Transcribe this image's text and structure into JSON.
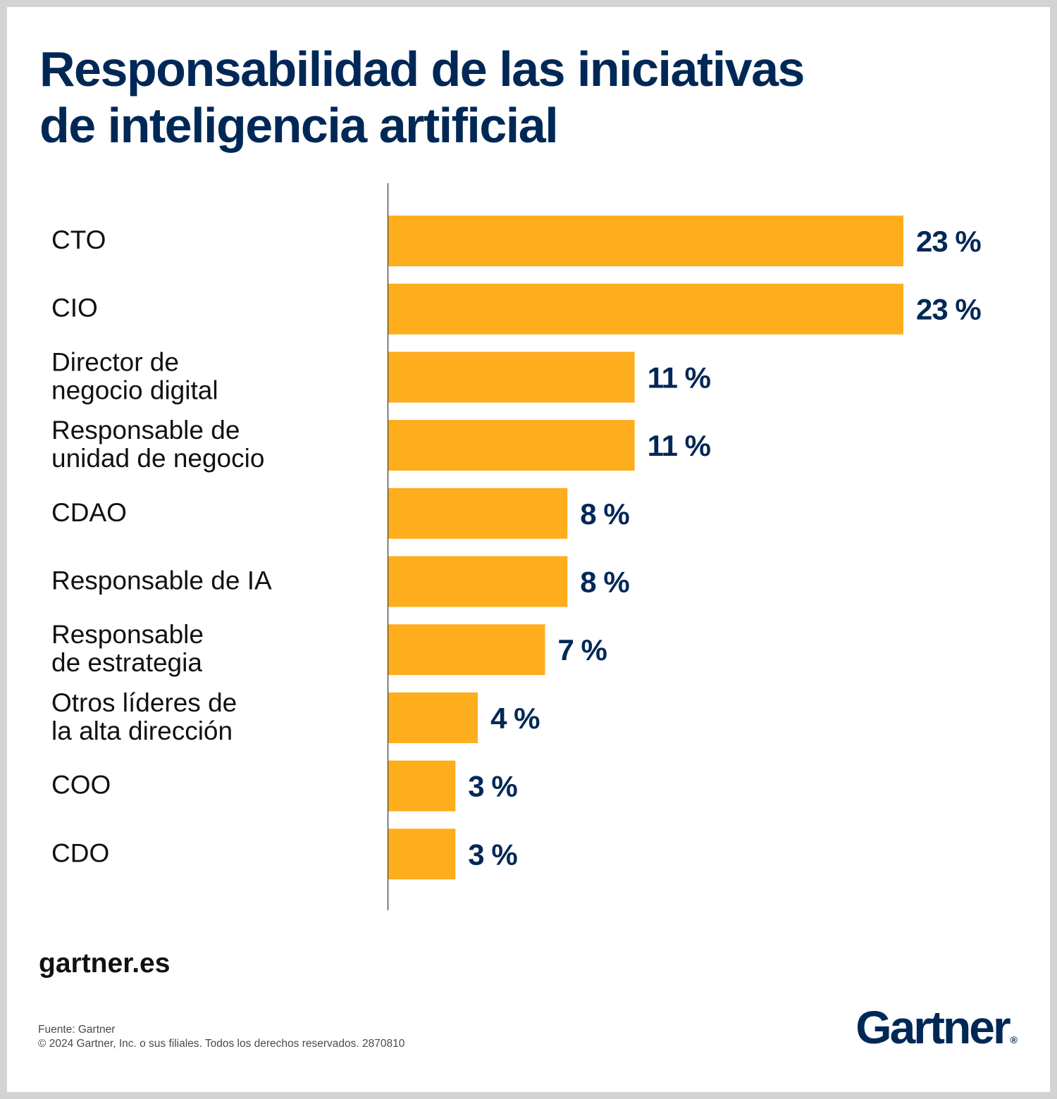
{
  "header": {
    "title_line1": "Responsabilidad de las iniciativas",
    "title_line2": "de inteligencia artificial"
  },
  "chart_data": {
    "type": "bar",
    "orientation": "horizontal",
    "categories": [
      [
        "CTO"
      ],
      [
        "CIO"
      ],
      [
        "Director de",
        "negocio digital"
      ],
      [
        "Responsable de",
        "unidad de negocio"
      ],
      [
        "CDAO"
      ],
      [
        "Responsable de IA"
      ],
      [
        "Responsable",
        "de estrategia"
      ],
      [
        "Otros líderes de",
        "la alta dirección"
      ],
      [
        "COO"
      ],
      [
        "CDO"
      ]
    ],
    "values": [
      23,
      23,
      11,
      11,
      8,
      8,
      7,
      4,
      3,
      3
    ],
    "value_labels": [
      "23 %",
      "23 %",
      "11 %",
      "11 %",
      "8 %",
      "8 %",
      "7 %",
      "4 %",
      "3 %",
      "3 %"
    ],
    "unit": "%",
    "bar_color": "#FEAD1D",
    "label_color": "#002856",
    "grid": false
  },
  "footer": {
    "site": "gartner.es",
    "source": "Fuente: Gartner",
    "copyright": "© 2024 Gartner, Inc. o sus filiales. Todos los derechos reservados. 2870810",
    "logo_text": "Gartner",
    "logo_mark": "®"
  }
}
